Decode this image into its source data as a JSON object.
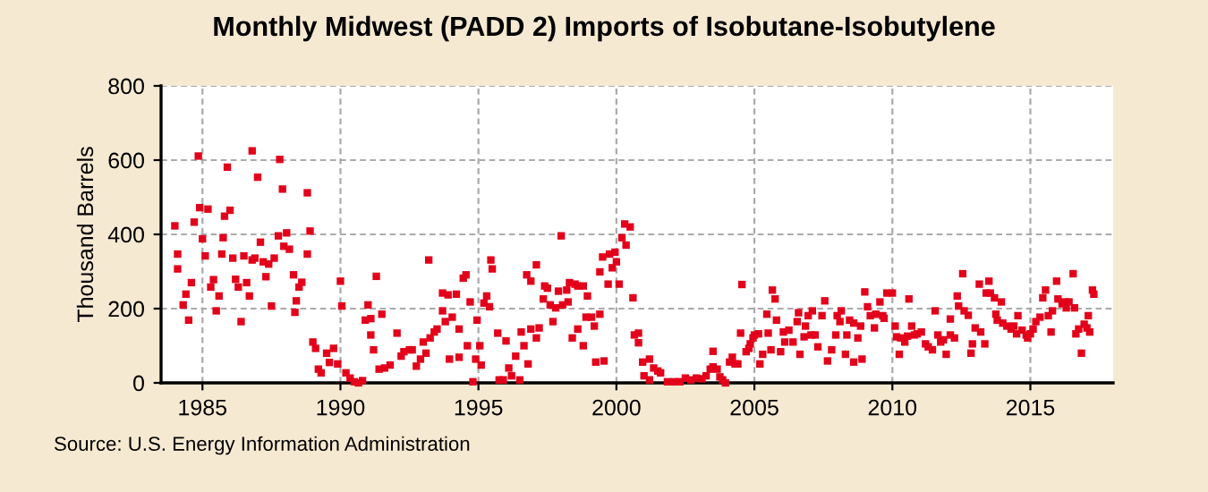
{
  "chart_data": {
    "type": "scatter",
    "title": "Monthly Midwest (PADD 2) Imports of Isobutane-Isobutylene",
    "ylabel": "Thousand Barrels",
    "annotations": [
      "Source: U.S. Energy Information Administration"
    ],
    "xlim": [
      1983.5,
      2018
    ],
    "xticks": [
      1985,
      1990,
      1995,
      2000,
      2005,
      2010,
      2015
    ],
    "ylim": [
      0,
      800
    ],
    "yticks": [
      0,
      200,
      400,
      600,
      800
    ],
    "grid": true,
    "marker": "square",
    "series": [
      {
        "color": "#e2001a",
        "x": [
          1984.0,
          1984.1,
          1984.1,
          1984.3,
          1984.4,
          1984.5,
          1984.6,
          1984.7,
          1984.85,
          1984.9,
          1985.0,
          1985.1,
          1985.2,
          1985.3,
          1985.4,
          1985.5,
          1985.6,
          1985.7,
          1985.75,
          1985.8,
          1985.9,
          1986.0,
          1986.1,
          1986.2,
          1986.3,
          1986.4,
          1986.5,
          1986.6,
          1986.7,
          1986.8,
          1986.8,
          1986.9,
          1987.0,
          1987.1,
          1987.2,
          1987.3,
          1987.4,
          1987.5,
          1987.6,
          1987.75,
          1987.8,
          1987.9,
          1987.95,
          1988.05,
          1988.15,
          1988.3,
          1988.35,
          1988.4,
          1988.5,
          1988.6,
          1988.8,
          1988.8,
          1988.9,
          1989.0,
          1989.1,
          1989.2,
          1989.3,
          1989.5,
          1989.6,
          1989.75,
          1989.9,
          1990.0,
          1990.05,
          1990.2,
          1990.35,
          1990.5,
          1990.65,
          1990.8,
          1990.9,
          1991.0,
          1991.1,
          1991.2,
          1991.1,
          1991.3,
          1991.4,
          1991.5,
          1991.6,
          1991.8,
          1992.05,
          1992.2,
          1992.3,
          1992.5,
          1992.6,
          1992.75,
          1992.9,
          1993.0,
          1993.1,
          1993.25,
          1993.4,
          1993.5,
          1993.2,
          1993.7,
          1993.7,
          1993.8,
          1993.9,
          1993.95,
          1994.05,
          1994.2,
          1994.3,
          1994.3,
          1994.45,
          1994.55,
          1994.6,
          1994.7,
          1994.8,
          1994.9,
          1994.95,
          1995.05,
          1995.1,
          1995.2,
          1995.3,
          1995.4,
          1995.45,
          1995.5,
          1995.7,
          1995.75,
          1995.9,
          1996.0,
          1996.1,
          1996.2,
          1996.35,
          1996.5,
          1996.55,
          1996.65,
          1996.75,
          1996.8,
          1996.9,
          1996.9,
          1997.1,
          1997.1,
          1997.2,
          1997.35,
          1997.4,
          1997.5,
          1997.6,
          1997.7,
          1997.8,
          1997.9,
          1998.0,
          1998.05,
          1998.2,
          1998.25,
          1998.3,
          1998.4,
          1998.5,
          1998.6,
          1998.6,
          1998.8,
          1998.8,
          1998.9,
          1998.95,
          1999.1,
          1999.2,
          1999.25,
          1999.4,
          1999.4,
          1999.55,
          1999.5,
          1999.7,
          1999.75,
          1999.85,
          1999.95,
          2000.0,
          2000.1,
          2000.2,
          2000.3,
          2000.35,
          2000.5,
          2000.6,
          2000.65,
          2000.8,
          2000.8,
          2000.95,
          2001.0,
          2001.2,
          2001.2,
          2001.35,
          2001.5,
          2001.6,
          2001.85,
          2002.1,
          2002.3,
          2002.5,
          2002.7,
          2002.9,
          2003.1,
          2003.25,
          2003.4,
          2003.5,
          2003.5,
          2003.65,
          2003.75,
          2003.85,
          2003.95,
          2004.1,
          2004.2,
          2004.3,
          2004.4,
          2004.5,
          2004.55,
          2004.7,
          2004.8,
          2004.85,
          2004.95,
          2005.0,
          2005.15,
          2005.2,
          2005.3,
          2005.45,
          2005.5,
          2005.6,
          2005.65,
          2005.75,
          2005.8,
          2005.95,
          2006.05,
          2006.1,
          2006.25,
          2006.4,
          2006.55,
          2006.6,
          2006.65,
          2006.8,
          2006.85,
          2006.95,
          2007.05,
          2007.1,
          2007.2,
          2007.3,
          2007.45,
          2007.55,
          2007.65,
          2007.8,
          2007.95,
          2008.0,
          2008.1,
          2008.15,
          2008.3,
          2008.35,
          2008.45,
          2008.6,
          2008.6,
          2008.75,
          2008.85,
          2008.9,
          2009.0,
          2009.1,
          2009.2,
          2009.35,
          2009.4,
          2009.55,
          2009.65,
          2009.7,
          2009.8,
          2010.0,
          2010.1,
          2010.15,
          2010.25,
          2010.3,
          2010.45,
          2010.55,
          2010.6,
          2010.7,
          2010.8,
          2010.9,
          2011.05,
          2011.2,
          2011.3,
          2011.45,
          2011.55,
          2011.65,
          2011.75,
          2011.85,
          2011.95,
          2012.1,
          2012.1,
          2012.25,
          2012.35,
          2012.4,
          2012.55,
          2012.6,
          2012.75,
          2012.85,
          2012.9,
          2013.0,
          2013.15,
          2013.2,
          2013.35,
          2013.4,
          2013.5,
          2013.55,
          2013.7,
          2013.75,
          2013.8,
          2013.95,
          2014.0,
          2014.15,
          2014.3,
          2014.4,
          2014.5,
          2014.55,
          2014.7,
          2014.85,
          2014.9,
          2015.0,
          2015.1,
          2015.2,
          2015.35,
          2015.45,
          2015.55,
          2015.65,
          2015.75,
          2015.8,
          2015.95,
          2016.0,
          2016.15,
          2016.25,
          2016.3,
          2016.4,
          2016.55,
          2016.6,
          2016.65,
          2016.75,
          2016.85,
          2016.95,
          2017.05,
          2017.1,
          2017.15,
          2017.25,
          2017.3
        ],
        "values": [
          423,
          347,
          307,
          210,
          239,
          169,
          270,
          433,
          611,
          472,
          388,
          342,
          468,
          258,
          278,
          194,
          234,
          347,
          391,
          449,
          581,
          465,
          336,
          279,
          258,
          165,
          342,
          270,
          234,
          331,
          625,
          336,
          554,
          379,
          326,
          286,
          320,
          207,
          336,
          396,
          602,
          522,
          368,
          404,
          360,
          291,
          190,
          221,
          258,
          271,
          347,
          512,
          409,
          110,
          93,
          37,
          27,
          80,
          55,
          93,
          51,
          274,
          207,
          27,
          13,
          3,
          0,
          6,
          169,
          210,
          129,
          89,
          173,
          287,
          37,
          185,
          40,
          48,
          134,
          72,
          84,
          89,
          89,
          45,
          64,
          110,
          80,
          121,
          137,
          145,
          331,
          242,
          194,
          165,
          237,
          64,
          177,
          239,
          145,
          69,
          282,
          291,
          100,
          218,
          3,
          64,
          169,
          100,
          48,
          215,
          234,
          205,
          331,
          307,
          134,
          8,
          8,
          113,
          40,
          19,
          72,
          8,
          137,
          100,
          291,
          51,
          274,
          145,
          318,
          121,
          148,
          226,
          261,
          255,
          210,
          165,
          202,
          247,
          396,
          210,
          250,
          218,
          270,
          121,
          266,
          145,
          261,
          261,
          100,
          177,
          234,
          177,
          153,
          56,
          185,
          299,
          59,
          339,
          266,
          347,
          310,
          352,
          326,
          266,
          391,
          428,
          371,
          420,
          229,
          129,
          134,
          108,
          56,
          19,
          64,
          8,
          40,
          32,
          27,
          3,
          3,
          3,
          13,
          8,
          13,
          11,
          19,
          37,
          43,
          85,
          37,
          16,
          8,
          0,
          56,
          69,
          51,
          51,
          134,
          265,
          84,
          93,
          105,
          121,
          129,
          132,
          51,
          77,
          185,
          134,
          89,
          250,
          226,
          169,
          84,
          137,
          110,
          142,
          110,
          165,
          189,
          77,
          124,
          153,
          181,
          129,
          194,
          129,
          97,
          181,
          221,
          59,
          89,
          129,
          181,
          165,
          194,
          77,
          129,
          169,
          161,
          56,
          121,
          153,
          64,
          245,
          205,
          181,
          148,
          185,
          218,
          181,
          174,
          242,
          242,
          153,
          124,
          77,
          121,
          110,
          126,
          226,
          153,
          129,
          132,
          137,
          105,
          97,
          89,
          194,
          129,
          110,
          116,
          77,
          172,
          129,
          121,
          234,
          207,
          294,
          194,
          182,
          80,
          105,
          148,
          266,
          137,
          105,
          242,
          274,
          242,
          229,
          185,
          169,
          218,
          161,
          153,
          145,
          153,
          132,
          181,
          142,
          129,
          121,
          132,
          145,
          165,
          177,
          229,
          250,
          181,
          137,
          194,
          274,
          226,
          213,
          218,
          202,
          218,
          294,
          202,
          132,
          145,
          80,
          158,
          148,
          181,
          137,
          250,
          239
        ]
      }
    ]
  }
}
